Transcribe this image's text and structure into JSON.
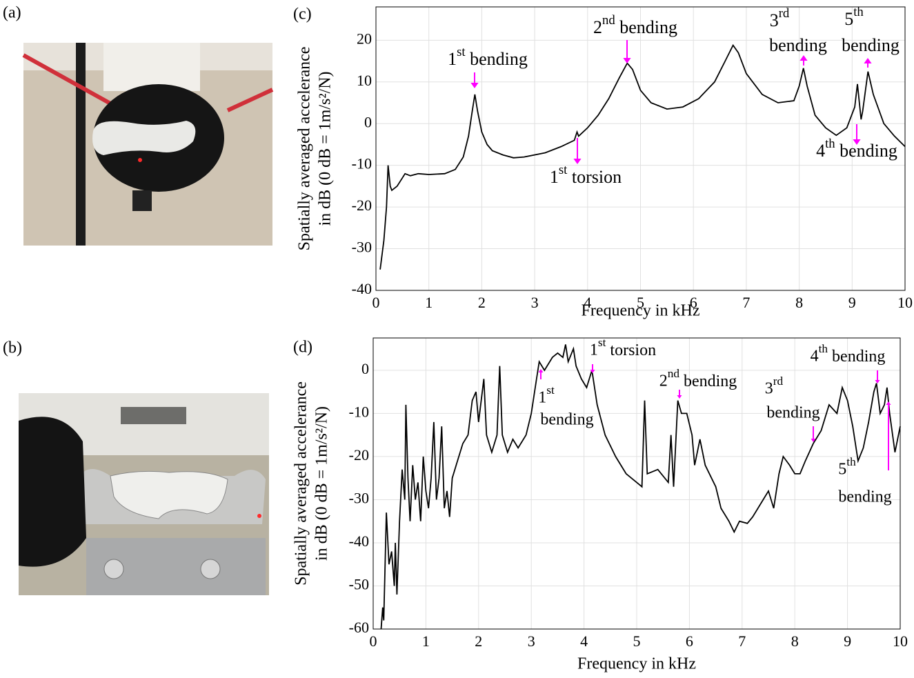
{
  "panels": [
    "(a)",
    "(b)"
  ],
  "chart_data": [
    {
      "type": "line",
      "panel": "(c)",
      "xlabel": "Frequency in kHz",
      "ylabel": [
        "Spatially averaged accelerance",
        "in dB (0 dB = 1m/s²/N)"
      ],
      "xlim": [
        0,
        10
      ],
      "xticks": [
        0,
        1,
        2,
        3,
        4,
        5,
        6,
        7,
        8,
        9,
        10
      ],
      "ylim": [
        -40,
        28
      ],
      "yticks": [
        -40,
        -30,
        -20,
        -10,
        0,
        10,
        20
      ],
      "grid": true,
      "color": "#000000",
      "annotation_color": "#ff00ff",
      "annotations": [
        {
          "label": [
            "1st bending"
          ]
        },
        {
          "label": [
            "2nd bending"
          ]
        },
        {
          "label": [
            "1st torsion"
          ]
        },
        {
          "label": [
            "3rd",
            "bending"
          ]
        },
        {
          "label": [
            "5th",
            "bending"
          ]
        },
        {
          "label": [
            "4th bending"
          ]
        }
      ],
      "x": [
        0.08,
        0.15,
        0.2,
        0.23,
        0.27,
        0.3,
        0.4,
        0.5,
        0.55,
        0.65,
        0.8,
        1.0,
        1.3,
        1.5,
        1.65,
        1.75,
        1.82,
        1.87,
        1.92,
        2.0,
        2.1,
        2.2,
        2.4,
        2.6,
        2.8,
        3.2,
        3.5,
        3.75,
        3.8,
        3.83,
        4.0,
        4.2,
        4.4,
        4.6,
        4.75,
        4.85,
        5.0,
        5.2,
        5.5,
        5.8,
        6.1,
        6.4,
        6.6,
        6.75,
        6.85,
        7.0,
        7.3,
        7.6,
        7.9,
        8.0,
        8.08,
        8.15,
        8.3,
        8.5,
        8.7,
        8.9,
        9.05,
        9.1,
        9.17,
        9.2,
        9.3,
        9.4,
        9.6,
        9.8,
        10
      ],
      "values": [
        -35,
        -28,
        -20,
        -10,
        -15,
        -16,
        -15,
        -13,
        -12,
        -12.5,
        -12,
        -12.2,
        -12,
        -11,
        -8,
        -3,
        3,
        7,
        3,
        -2,
        -5,
        -6.5,
        -7.5,
        -8.2,
        -8,
        -7,
        -5.5,
        -4,
        -2,
        -3,
        -1,
        2,
        6,
        11,
        14.5,
        13,
        8,
        5,
        3.5,
        4,
        6,
        10,
        15,
        18.8,
        17,
        12,
        7,
        5,
        5.5,
        9,
        13.3,
        9,
        2,
        -1,
        -2.8,
        -1,
        4,
        9.5,
        1,
        3,
        12.5,
        7,
        0,
        -3,
        -5.5
      ]
    },
    {
      "type": "line",
      "panel": "(d)",
      "xlabel": "Frequency in kHz",
      "ylabel": [
        "Spatially averaged accelerance",
        "in dB (0 dB = 1m/s²/N)"
      ],
      "xlim": [
        0,
        10
      ],
      "xticks": [
        0,
        1,
        2,
        3,
        4,
        5,
        6,
        7,
        8,
        9,
        10
      ],
      "ylim": [
        -60,
        7.5
      ],
      "yticks": [
        -60,
        -50,
        -40,
        -30,
        -20,
        -10,
        0
      ],
      "grid": true,
      "color": "#000000",
      "annotation_color": "#ff00ff",
      "annotations": [
        {
          "label": [
            "1st",
            "bending"
          ]
        },
        {
          "label": [
            "1st torsion"
          ]
        },
        {
          "label": [
            "2nd bending"
          ]
        },
        {
          "label": [
            "3rd",
            "bending"
          ]
        },
        {
          "label": [
            "4th bending"
          ]
        },
        {
          "label": [
            "5th",
            "bending"
          ]
        }
      ],
      "x": [
        0.15,
        0.18,
        0.2,
        0.25,
        0.3,
        0.35,
        0.4,
        0.42,
        0.45,
        0.5,
        0.55,
        0.6,
        0.62,
        0.66,
        0.7,
        0.75,
        0.8,
        0.85,
        0.9,
        0.95,
        1.0,
        1.05,
        1.1,
        1.15,
        1.2,
        1.25,
        1.3,
        1.35,
        1.4,
        1.45,
        1.5,
        1.6,
        1.7,
        1.8,
        1.88,
        1.95,
        2.0,
        2.1,
        2.15,
        2.25,
        2.35,
        2.4,
        2.45,
        2.55,
        2.65,
        2.75,
        2.9,
        3.0,
        3.1,
        3.15,
        3.25,
        3.4,
        3.5,
        3.6,
        3.65,
        3.7,
        3.8,
        3.85,
        3.95,
        4.05,
        4.15,
        4.25,
        4.4,
        4.6,
        4.8,
        5.0,
        5.1,
        5.15,
        5.2,
        5.4,
        5.6,
        5.65,
        5.7,
        5.78,
        5.85,
        5.95,
        6.05,
        6.1,
        6.2,
        6.3,
        6.5,
        6.6,
        6.75,
        6.85,
        6.95,
        7.1,
        7.2,
        7.4,
        7.5,
        7.6,
        7.7,
        7.78,
        7.9,
        8.0,
        8.1,
        8.2,
        8.35,
        8.5,
        8.65,
        8.8,
        8.9,
        9.0,
        9.1,
        9.2,
        9.3,
        9.4,
        9.5,
        9.55,
        9.62,
        9.7,
        9.75,
        9.8,
        9.9,
        9.95,
        10.0
      ],
      "values": [
        -60,
        -55,
        -58,
        -33,
        -45,
        -42,
        -50,
        -40,
        -52,
        -35,
        -23,
        -30,
        -8,
        -25,
        -35,
        -22,
        -30,
        -26,
        -35,
        -20,
        -28,
        -32,
        -25,
        -12,
        -30,
        -25,
        -13,
        -32,
        -28,
        -34,
        -25,
        -21,
        -17,
        -15,
        -7,
        -5,
        -12,
        -2,
        -15,
        -19,
        -15,
        1,
        -15,
        -19,
        -16,
        -18,
        -15,
        -10,
        -2,
        2,
        0,
        3,
        4,
        3,
        6,
        2,
        5,
        1,
        -2,
        -4,
        0,
        -8,
        -15,
        -20,
        -24,
        -26,
        -27,
        -7,
        -24,
        -23,
        -26,
        -15,
        -27,
        -7,
        -10,
        -10,
        -15,
        -22,
        -16,
        -22,
        -27,
        -32,
        -35,
        -37.5,
        -35,
        -35.5,
        -34,
        -30,
        -28,
        -32,
        -24,
        -20,
        -22,
        -24,
        -24,
        -21,
        -17,
        -14,
        -8,
        -10,
        -4,
        -7,
        -13,
        -21,
        -18,
        -12,
        -5,
        -3,
        -10,
        -8,
        -4,
        -10,
        -19,
        -16,
        -13
      ]
    }
  ]
}
